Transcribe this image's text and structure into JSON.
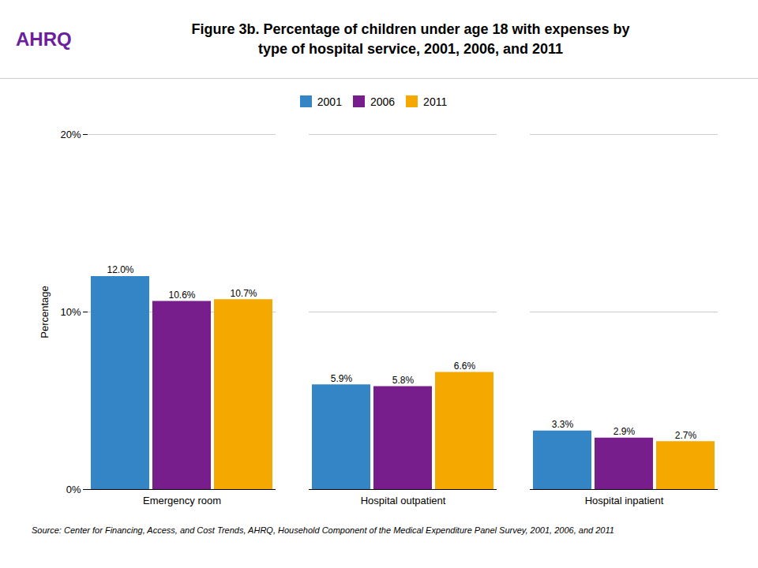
{
  "chart_data": {
    "type": "bar",
    "title": "Figure 3b. Percentage of children under age 18 with expenses by\ntype of hospital service, 2001, 2006, and 2011",
    "ylabel": "Percentage",
    "annotations": [
      "AHRQ",
      "Source: Center for Financing, Access, and Cost Trends, AHRQ, Household Component of the Medical Expenditure Panel Survey,  2001, 2006, and 2011"
    ],
    "categories": [
      "Emergency room",
      "Hospital outpatient",
      "Hospital inpatient"
    ],
    "series": [
      {
        "name": "2001",
        "color": "#3385C6",
        "values": [
          12.0,
          5.9,
          3.3
        ],
        "value_labels": [
          "12.0%",
          "5.9%",
          "3.3%"
        ]
      },
      {
        "name": "2006",
        "color": "#771D8C",
        "values": [
          10.6,
          5.8,
          2.9
        ],
        "value_labels": [
          "10.6%",
          "5.8%",
          "2.9%"
        ]
      },
      {
        "name": "2011",
        "color": "#F5A800",
        "values": [
          10.7,
          6.6,
          2.7
        ],
        "value_labels": [
          "10.7%",
          "6.6%",
          "2.7%"
        ]
      }
    ],
    "ylim": [
      0,
      20
    ],
    "yticks": [
      {
        "value": 0,
        "label": "0%"
      },
      {
        "value": 10,
        "label": "10%"
      },
      {
        "value": 20,
        "label": "20%"
      }
    ],
    "grid": true,
    "legend": "top",
    "data_labels": true
  }
}
